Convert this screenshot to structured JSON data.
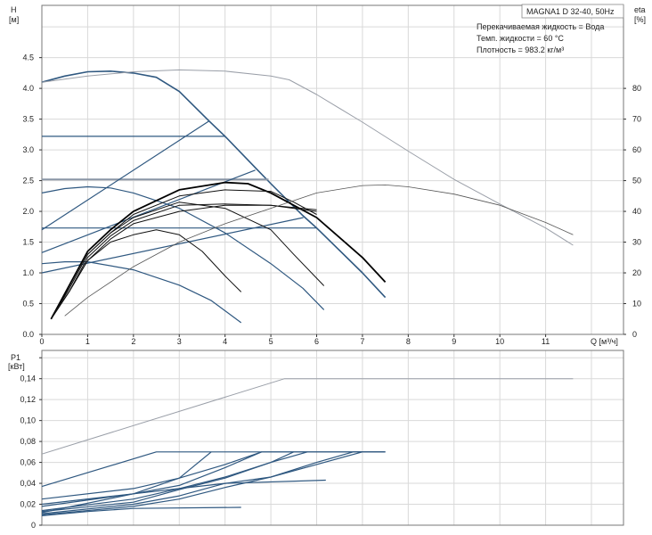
{
  "colors": {
    "pump_curve": "#2f5880",
    "efficiency_curve": "#111111",
    "max_curve": "#9a9fa8",
    "grid": "#d9d9d9",
    "axis": "#777777"
  },
  "chart_data": [
    {
      "type": "line",
      "title": "MAGNA1 D 32-40, 50Hz",
      "annotations": [
        "Перекачиваемая жидкость = Вода",
        "Темп. жидкости = 60 °C",
        "Плотность = 983.2 кг/м³"
      ],
      "xlabel": "Q [м³/ч]",
      "ylabel": "H",
      "ylabel_unit": "[м]",
      "y2label": "eta",
      "y2label_unit": "[%]",
      "xlim": [
        0,
        12.7
      ],
      "ylim": [
        0,
        5.35
      ],
      "y2lim": [
        0,
        107
      ],
      "xticks": [
        "0",
        "1",
        "2",
        "3",
        "4",
        "5",
        "6",
        "7",
        "8",
        "9",
        "10",
        "11"
      ],
      "yticks": [
        "0.0",
        "0.5",
        "1.0",
        "1.5",
        "2.0",
        "2.5",
        "3.0",
        "3.5",
        "4.0",
        "4.5"
      ],
      "y2ticks": [
        "0",
        "10",
        "20",
        "30",
        "40",
        "50",
        "60",
        "70",
        "80"
      ],
      "grid": true,
      "head_series": [
        {
          "role": "max",
          "points": [
            [
              0,
              4.1
            ],
            [
              0.5,
              4.2
            ],
            [
              1,
              4.27
            ],
            [
              1.5,
              4.28
            ],
            [
              2,
              4.25
            ],
            [
              2.5,
              4.18
            ],
            [
              3,
              3.95
            ],
            [
              3.65,
              3.47
            ],
            [
              4,
              3.22
            ],
            [
              4.7,
              2.68
            ],
            [
              5,
              2.45
            ],
            [
              5.7,
              1.93
            ],
            [
              6,
              1.73
            ],
            [
              7,
              1.0
            ],
            [
              7.5,
              0.6
            ]
          ]
        },
        {
          "role": "const",
          "points": [
            [
              0,
              3.22
            ],
            [
              4,
              3.22
            ]
          ]
        },
        {
          "role": "const-thick",
          "points": [
            [
              0,
              2.52
            ],
            [
              4.95,
              2.52
            ]
          ]
        },
        {
          "role": "const",
          "points": [
            [
              0,
              1.73
            ],
            [
              6,
              1.73
            ]
          ]
        },
        {
          "role": "prop",
          "points": [
            [
              0,
              1.7
            ],
            [
              3.65,
              3.47
            ]
          ]
        },
        {
          "role": "prop",
          "points": [
            [
              0,
              1.33
            ],
            [
              4.66,
              2.67
            ]
          ]
        },
        {
          "role": "prop",
          "points": [
            [
              0,
              1.0
            ],
            [
              5.71,
              1.9
            ]
          ]
        },
        {
          "role": "curve",
          "points": [
            [
              0,
              2.3
            ],
            [
              0.5,
              2.37
            ],
            [
              1,
              2.4
            ],
            [
              1.5,
              2.38
            ],
            [
              2,
              2.3
            ],
            [
              3,
              2.05
            ],
            [
              4,
              1.65
            ],
            [
              5,
              1.15
            ],
            [
              5.7,
              0.75
            ],
            [
              6.16,
              0.4
            ]
          ]
        },
        {
          "role": "curve",
          "points": [
            [
              0,
              1.15
            ],
            [
              0.5,
              1.18
            ],
            [
              1,
              1.18
            ],
            [
              2,
              1.05
            ],
            [
              3,
              0.8
            ],
            [
              3.7,
              0.55
            ],
            [
              4.35,
              0.19
            ]
          ]
        },
        {
          "role": "max-gray",
          "points": [
            [
              0,
              4.1
            ],
            [
              1,
              4.2
            ],
            [
              2,
              4.27
            ],
            [
              3,
              4.3
            ],
            [
              4,
              4.28
            ],
            [
              5,
              4.2
            ],
            [
              5.4,
              4.14
            ],
            [
              6,
              3.9
            ],
            [
              7,
              3.45
            ],
            [
              8,
              2.98
            ],
            [
              9,
              2.52
            ],
            [
              10,
              2.12
            ],
            [
              11,
              1.73
            ],
            [
              11.6,
              1.45
            ]
          ]
        }
      ],
      "efficiency_series": [
        {
          "points": [
            [
              0.2,
              5
            ],
            [
              0.6,
              14
            ],
            [
              1,
              24
            ],
            [
              1.5,
              30
            ],
            [
              2,
              32.4
            ],
            [
              2.5,
              34
            ],
            [
              3,
              32.4
            ],
            [
              3.5,
              27
            ],
            [
              4,
              19
            ],
            [
              4.35,
              13.8
            ]
          ]
        },
        {
          "points": [
            [
              0.2,
              5
            ],
            [
              0.6,
              15
            ],
            [
              1,
              26
            ],
            [
              1.5,
              33
            ],
            [
              2,
              38
            ],
            [
              3,
              43
            ],
            [
              4,
              41
            ],
            [
              5,
              34
            ],
            [
              5.5,
              26
            ],
            [
              6.16,
              15.8
            ]
          ]
        },
        {
          "points": [
            [
              0.2,
              5
            ],
            [
              0.6,
              16
            ],
            [
              1,
              27
            ],
            [
              1.5,
              34
            ],
            [
              2,
              40
            ],
            [
              3,
              47
            ],
            [
              4,
              49.4
            ],
            [
              4.5,
              49
            ],
            [
              5,
              46
            ],
            [
              6,
              38
            ],
            [
              7,
              25
            ],
            [
              7.5,
              17
            ]
          ]
        },
        {
          "points": [
            [
              0.2,
              5
            ],
            [
              0.6,
              15
            ],
            [
              1,
              26
            ],
            [
              1.5,
              33
            ],
            [
              2,
              39
            ],
            [
              3,
              45
            ],
            [
              4,
              47
            ],
            [
              5,
              46.5
            ],
            [
              5.5,
              43
            ],
            [
              6,
              39
            ]
          ]
        },
        {
          "points": [
            [
              0.2,
              5
            ],
            [
              0.6,
              14
            ],
            [
              1,
              25
            ],
            [
              1.5,
              32
            ],
            [
              2,
              37
            ],
            [
              3,
              42
            ],
            [
              4,
              42.4
            ],
            [
              5,
              42
            ],
            [
              6,
              40
            ]
          ]
        },
        {
          "points": [
            [
              0.2,
              5
            ],
            [
              0.6,
              14
            ],
            [
              1,
              24
            ],
            [
              1.5,
              31
            ],
            [
              2,
              36
            ],
            [
              3,
              40
            ],
            [
              4,
              42
            ],
            [
              5,
              42
            ],
            [
              6,
              40.5
            ]
          ]
        },
        {
          "role": "max",
          "points": [
            [
              0.5,
              6
            ],
            [
              1,
              12
            ],
            [
              2,
              22
            ],
            [
              3,
              30
            ],
            [
              4,
              36
            ],
            [
              5,
              41
            ],
            [
              6,
              46
            ],
            [
              7,
              48.4
            ],
            [
              7.5,
              48.6
            ],
            [
              8,
              48
            ],
            [
              9,
              45.6
            ],
            [
              10,
              42
            ],
            [
              11,
              36.4
            ],
            [
              11.6,
              32.4
            ]
          ]
        }
      ]
    },
    {
      "type": "line",
      "ylabel": "P1",
      "ylabel_unit": "[кВт]",
      "xlim": [
        0,
        12.7
      ],
      "ylim": [
        0,
        0.167
      ],
      "yticks": [
        "0",
        "0,02",
        "0,04",
        "0,06",
        "0,08",
        "0,10",
        "0,12",
        "0,14"
      ],
      "grid": true,
      "series": [
        {
          "role": "max",
          "points": [
            [
              0,
              0.068
            ],
            [
              5.3,
              0.14
            ],
            [
              11.6,
              0.14
            ]
          ]
        },
        {
          "points": [
            [
              0,
              0.037
            ],
            [
              2.5,
              0.07
            ],
            [
              7.5,
              0.07
            ]
          ]
        },
        {
          "points": [
            [
              0,
              0.025
            ],
            [
              2,
              0.035
            ],
            [
              3,
              0.045
            ],
            [
              4,
              0.058
            ],
            [
              4.8,
              0.07
            ],
            [
              7.5,
              0.07
            ]
          ]
        },
        {
          "points": [
            [
              0,
              0.02
            ],
            [
              2,
              0.03
            ],
            [
              3,
              0.045
            ],
            [
              3.7,
              0.07
            ]
          ]
        },
        {
          "points": [
            [
              0,
              0.018
            ],
            [
              2,
              0.03
            ],
            [
              3,
              0.038
            ],
            [
              4,
              0.055
            ],
            [
              4.8,
              0.07
            ]
          ]
        },
        {
          "points": [
            [
              0,
              0.014
            ],
            [
              2,
              0.025
            ],
            [
              3,
              0.035
            ],
            [
              4,
              0.046
            ],
            [
              5,
              0.06
            ],
            [
              5.5,
              0.07
            ]
          ]
        },
        {
          "points": [
            [
              0,
              0.013
            ],
            [
              2,
              0.022
            ],
            [
              3,
              0.034
            ],
            [
              4,
              0.045
            ],
            [
              5,
              0.06
            ],
            [
              5.8,
              0.07
            ]
          ]
        },
        {
          "points": [
            [
              0,
              0.012
            ],
            [
              2,
              0.03
            ],
            [
              3,
              0.035
            ],
            [
              4,
              0.04
            ],
            [
              6.2,
              0.043
            ]
          ]
        },
        {
          "points": [
            [
              0,
              0.011
            ],
            [
              2,
              0.02
            ],
            [
              3,
              0.028
            ],
            [
              4,
              0.04
            ],
            [
              5,
              0.046
            ],
            [
              6,
              0.06
            ],
            [
              6.8,
              0.07
            ],
            [
              7.5,
              0.07
            ]
          ]
        },
        {
          "points": [
            [
              0,
              0.01
            ],
            [
              2,
              0.018
            ],
            [
              3,
              0.025
            ],
            [
              4,
              0.036
            ],
            [
              5,
              0.046
            ],
            [
              6,
              0.058
            ],
            [
              7,
              0.07
            ]
          ]
        },
        {
          "points": [
            [
              0,
              0.009
            ],
            [
              1,
              0.013
            ],
            [
              2,
              0.016
            ],
            [
              4.35,
              0.017
            ]
          ]
        }
      ]
    }
  ]
}
